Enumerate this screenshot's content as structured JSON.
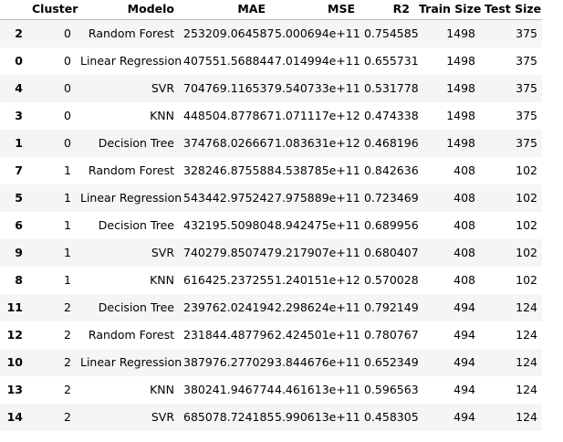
{
  "table": {
    "columns": {
      "index": "",
      "cluster": "Cluster",
      "modelo": "Modelo",
      "mae": "MAE",
      "mse": "MSE",
      "r2": "R2",
      "train_size": "Train Size",
      "test_size": "Test Size"
    },
    "rows": [
      {
        "index": "2",
        "cluster": "0",
        "modelo": "Random Forest",
        "mae": "253209.064587",
        "mse": "5.000694e+11",
        "r2": "0.754585",
        "train_size": "1498",
        "test_size": "375"
      },
      {
        "index": "0",
        "cluster": "0",
        "modelo": "Linear Regression",
        "mae": "407551.568844",
        "mse": "7.014994e+11",
        "r2": "0.655731",
        "train_size": "1498",
        "test_size": "375"
      },
      {
        "index": "4",
        "cluster": "0",
        "modelo": "SVR",
        "mae": "704769.116537",
        "mse": "9.540733e+11",
        "r2": "0.531778",
        "train_size": "1498",
        "test_size": "375"
      },
      {
        "index": "3",
        "cluster": "0",
        "modelo": "KNN",
        "mae": "448504.877867",
        "mse": "1.071117e+12",
        "r2": "0.474338",
        "train_size": "1498",
        "test_size": "375"
      },
      {
        "index": "1",
        "cluster": "0",
        "modelo": "Decision Tree",
        "mae": "374768.026667",
        "mse": "1.083631e+12",
        "r2": "0.468196",
        "train_size": "1498",
        "test_size": "375"
      },
      {
        "index": "7",
        "cluster": "1",
        "modelo": "Random Forest",
        "mae": "328246.875588",
        "mse": "4.538785e+11",
        "r2": "0.842636",
        "train_size": "408",
        "test_size": "102"
      },
      {
        "index": "5",
        "cluster": "1",
        "modelo": "Linear Regression",
        "mae": "543442.975242",
        "mse": "7.975889e+11",
        "r2": "0.723469",
        "train_size": "408",
        "test_size": "102"
      },
      {
        "index": "6",
        "cluster": "1",
        "modelo": "Decision Tree",
        "mae": "432195.509804",
        "mse": "8.942475e+11",
        "r2": "0.689956",
        "train_size": "408",
        "test_size": "102"
      },
      {
        "index": "9",
        "cluster": "1",
        "modelo": "SVR",
        "mae": "740279.850747",
        "mse": "9.217907e+11",
        "r2": "0.680407",
        "train_size": "408",
        "test_size": "102"
      },
      {
        "index": "8",
        "cluster": "1",
        "modelo": "KNN",
        "mae": "616425.237255",
        "mse": "1.240151e+12",
        "r2": "0.570028",
        "train_size": "408",
        "test_size": "102"
      },
      {
        "index": "11",
        "cluster": "2",
        "modelo": "Decision Tree",
        "mae": "239762.024194",
        "mse": "2.298624e+11",
        "r2": "0.792149",
        "train_size": "494",
        "test_size": "124"
      },
      {
        "index": "12",
        "cluster": "2",
        "modelo": "Random Forest",
        "mae": "231844.487796",
        "mse": "2.424501e+11",
        "r2": "0.780767",
        "train_size": "494",
        "test_size": "124"
      },
      {
        "index": "10",
        "cluster": "2",
        "modelo": "Linear Regression",
        "mae": "387976.277029",
        "mse": "3.844676e+11",
        "r2": "0.652349",
        "train_size": "494",
        "test_size": "124"
      },
      {
        "index": "13",
        "cluster": "2",
        "modelo": "KNN",
        "mae": "380241.946774",
        "mse": "4.461613e+11",
        "r2": "0.596563",
        "train_size": "494",
        "test_size": "124"
      },
      {
        "index": "14",
        "cluster": "2",
        "modelo": "SVR",
        "mae": "685078.724185",
        "mse": "5.990613e+11",
        "r2": "0.458305",
        "train_size": "494",
        "test_size": "124"
      }
    ]
  }
}
